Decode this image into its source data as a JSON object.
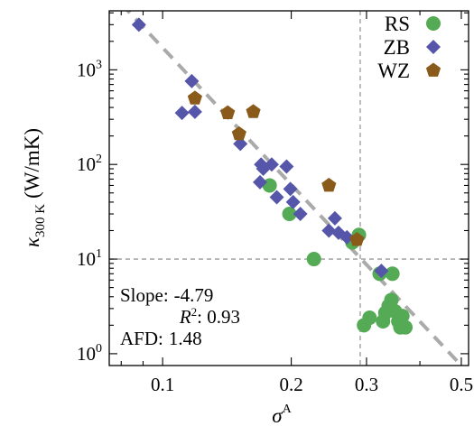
{
  "chart_data": {
    "type": "scatter",
    "title": "",
    "xlabel": "σ",
    "xlabel_sup": "A",
    "ylabel": "κ",
    "ylabel_sub": "300 K",
    "ylabel_units": "(W/mK)",
    "x_scale": "log",
    "y_scale": "log",
    "xlim": [
      0.075,
      0.52
    ],
    "ylim": [
      0.75,
      4200
    ],
    "x_ticks": [
      {
        "value": 0.1,
        "label": "0.1"
      },
      {
        "value": 0.2,
        "label": "0.2"
      },
      {
        "value": 0.3,
        "label": "0.3"
      },
      {
        "value": 0.5,
        "label": "0.5"
      }
    ],
    "y_ticks": [
      {
        "value": 1,
        "base": "10",
        "exp": "0"
      },
      {
        "value": 10,
        "base": "10",
        "exp": "1"
      },
      {
        "value": 100,
        "base": "10",
        "exp": "2"
      },
      {
        "value": 1000,
        "base": "10",
        "exp": "3"
      }
    ],
    "grid": false,
    "legend_position": "top-right",
    "fit_line": {
      "slope": -4.79,
      "x": [
        0.08,
        0.5
      ],
      "y": [
        5000,
        0.75
      ],
      "color": "#aaaaaa",
      "style": "dashed"
    },
    "reference_lines": {
      "x": 0.29,
      "y": 10,
      "color": "#999999",
      "style": "dashed"
    },
    "annotation": {
      "slope_label": "Slope:",
      "slope_value": "-4.79",
      "r2_label": "R",
      "r2_sup": "2",
      "r2_value": ": 0.93",
      "afd_label": "AFD:",
      "afd_value": "1.48"
    },
    "series": [
      {
        "name": "RS",
        "marker": "circle",
        "color": "#55aa55",
        "points": [
          [
            0.178,
            60
          ],
          [
            0.198,
            30
          ],
          [
            0.226,
            10
          ],
          [
            0.278,
            15
          ],
          [
            0.288,
            18
          ],
          [
            0.322,
            7
          ],
          [
            0.345,
            7
          ],
          [
            0.343,
            3.7
          ],
          [
            0.338,
            3.2
          ],
          [
            0.332,
            2.7
          ],
          [
            0.35,
            2.8
          ],
          [
            0.364,
            2.5
          ],
          [
            0.36,
            1.9
          ],
          [
            0.37,
            1.9
          ],
          [
            0.356,
            2.2
          ],
          [
            0.328,
            2.2
          ],
          [
            0.305,
            2.4
          ],
          [
            0.296,
            2.0
          ]
        ]
      },
      {
        "name": "ZB",
        "marker": "diamond",
        "color": "#5555aa",
        "points": [
          [
            0.088,
            3000
          ],
          [
            0.117,
            760
          ],
          [
            0.111,
            350
          ],
          [
            0.119,
            360
          ],
          [
            0.152,
            165
          ],
          [
            0.17,
            100
          ],
          [
            0.169,
            65
          ],
          [
            0.172,
            90
          ],
          [
            0.18,
            100
          ],
          [
            0.195,
            95
          ],
          [
            0.199,
            55
          ],
          [
            0.202,
            40
          ],
          [
            0.185,
            45
          ],
          [
            0.21,
            30
          ],
          [
            0.245,
            20
          ],
          [
            0.253,
            27
          ],
          [
            0.258,
            19
          ],
          [
            0.27,
            17
          ],
          [
            0.325,
            7.5
          ]
        ]
      },
      {
        "name": "WZ",
        "marker": "pentagon",
        "color": "#8a5a1a",
        "points": [
          [
            0.119,
            500
          ],
          [
            0.142,
            350
          ],
          [
            0.151,
            210
          ],
          [
            0.163,
            360
          ],
          [
            0.245,
            60
          ],
          [
            0.285,
            16
          ]
        ]
      }
    ]
  }
}
